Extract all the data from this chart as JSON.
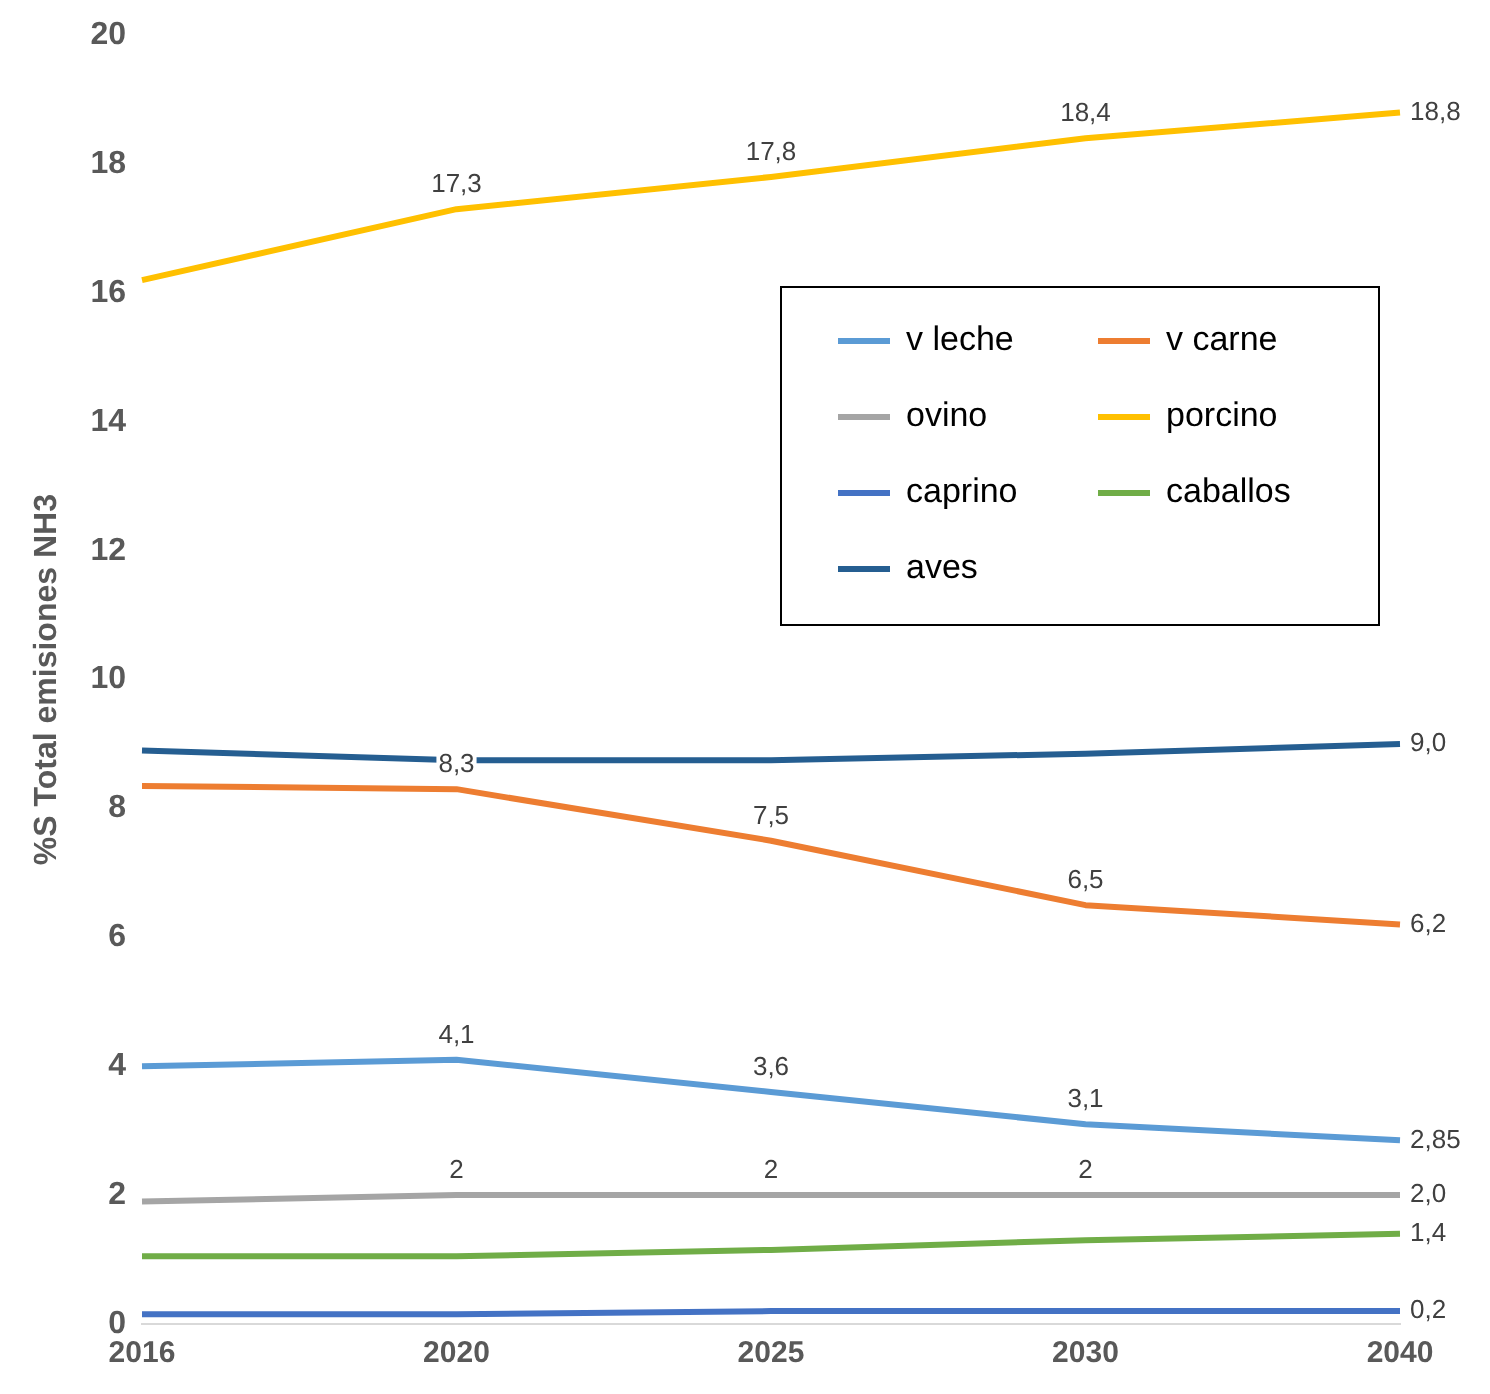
{
  "chart_data": {
    "type": "line",
    "ylabel": "%S Total emisiones NH3",
    "categories": [
      "2016",
      "2020",
      "2025",
      "2030",
      "2040"
    ],
    "ylim": [
      0,
      20
    ],
    "yticks": [
      0,
      2,
      4,
      6,
      8,
      10,
      12,
      14,
      16,
      18,
      20
    ],
    "grid": false,
    "legend": "top right",
    "marker": "none",
    "series": [
      {
        "name": "v leche",
        "color": "#5b9bd5",
        "values": [
          4.0,
          4.1,
          3.6,
          3.1,
          2.85
        ],
        "value_labels": [
          null,
          "4,1",
          "3,6",
          "3,1",
          "2,85"
        ]
      },
      {
        "name": "v carne",
        "color": "#ed7d31",
        "values": [
          8.35,
          8.3,
          7.5,
          6.5,
          6.2
        ],
        "value_labels": [
          null,
          "8,3",
          "7,5",
          "6,5",
          "6,2"
        ]
      },
      {
        "name": "ovino",
        "color": "#a5a5a5",
        "values": [
          1.9,
          2,
          2,
          2,
          2.0
        ],
        "value_labels": [
          null,
          "2",
          "2",
          "2",
          "2,0"
        ]
      },
      {
        "name": "porcino",
        "color": "#ffc000",
        "values": [
          16.2,
          17.3,
          17.8,
          18.4,
          18.8
        ],
        "value_labels": [
          null,
          "17,3",
          "17,8",
          "18,4",
          "18,8"
        ]
      },
      {
        "name": "caprino",
        "color": "#4472c4",
        "values": [
          0.15,
          0.15,
          0.2,
          0.2,
          0.2
        ],
        "value_labels": [
          null,
          null,
          null,
          null,
          "0,2"
        ]
      },
      {
        "name": "caballos",
        "color": "#70ad47",
        "values": [
          1.05,
          1.05,
          1.15,
          1.3,
          1.4
        ],
        "value_labels": [
          null,
          null,
          null,
          null,
          "1,4"
        ]
      },
      {
        "name": "aves",
        "color": "#255e91",
        "values": [
          8.9,
          8.75,
          8.75,
          8.85,
          9.0
        ],
        "value_labels": [
          null,
          null,
          null,
          null,
          "9,0"
        ]
      }
    ]
  }
}
